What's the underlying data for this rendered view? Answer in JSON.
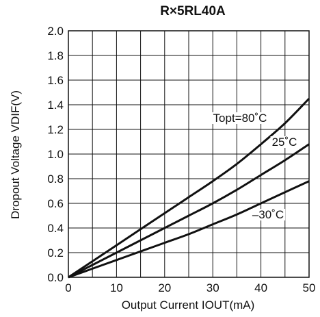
{
  "chart_data": {
    "type": "line",
    "title": "R×5RL40A",
    "xlabel": "Output Current IOUT(mA)",
    "ylabel": "Dropout Voltage VDIF(V)",
    "xlim": [
      0,
      50
    ],
    "ylim": [
      0,
      2.0
    ],
    "xticks": [
      "0",
      "10",
      "20",
      "30",
      "40",
      "50"
    ],
    "yticks": [
      "0.0",
      "0.2",
      "0.4",
      "0.6",
      "0.8",
      "1.0",
      "1.2",
      "1.4",
      "1.6",
      "1.8",
      "2.0"
    ],
    "grid": true,
    "series": [
      {
        "name": "Topt=80˚C",
        "x": [
          0,
          5,
          10,
          15,
          20,
          25,
          30,
          35,
          40,
          45,
          50
        ],
        "y": [
          0,
          0.13,
          0.26,
          0.39,
          0.52,
          0.65,
          0.78,
          0.92,
          1.08,
          1.25,
          1.45
        ]
      },
      {
        "name": "25˚C",
        "x": [
          0,
          5,
          10,
          15,
          20,
          25,
          30,
          35,
          40,
          45,
          50
        ],
        "y": [
          0,
          0.1,
          0.2,
          0.3,
          0.4,
          0.5,
          0.6,
          0.71,
          0.83,
          0.95,
          1.08
        ]
      },
      {
        "name": "–30˚C",
        "x": [
          0,
          5,
          10,
          15,
          20,
          25,
          30,
          35,
          40,
          45,
          50
        ],
        "y": [
          0,
          0.07,
          0.14,
          0.21,
          0.28,
          0.35,
          0.43,
          0.51,
          0.6,
          0.69,
          0.78
        ]
      }
    ]
  }
}
